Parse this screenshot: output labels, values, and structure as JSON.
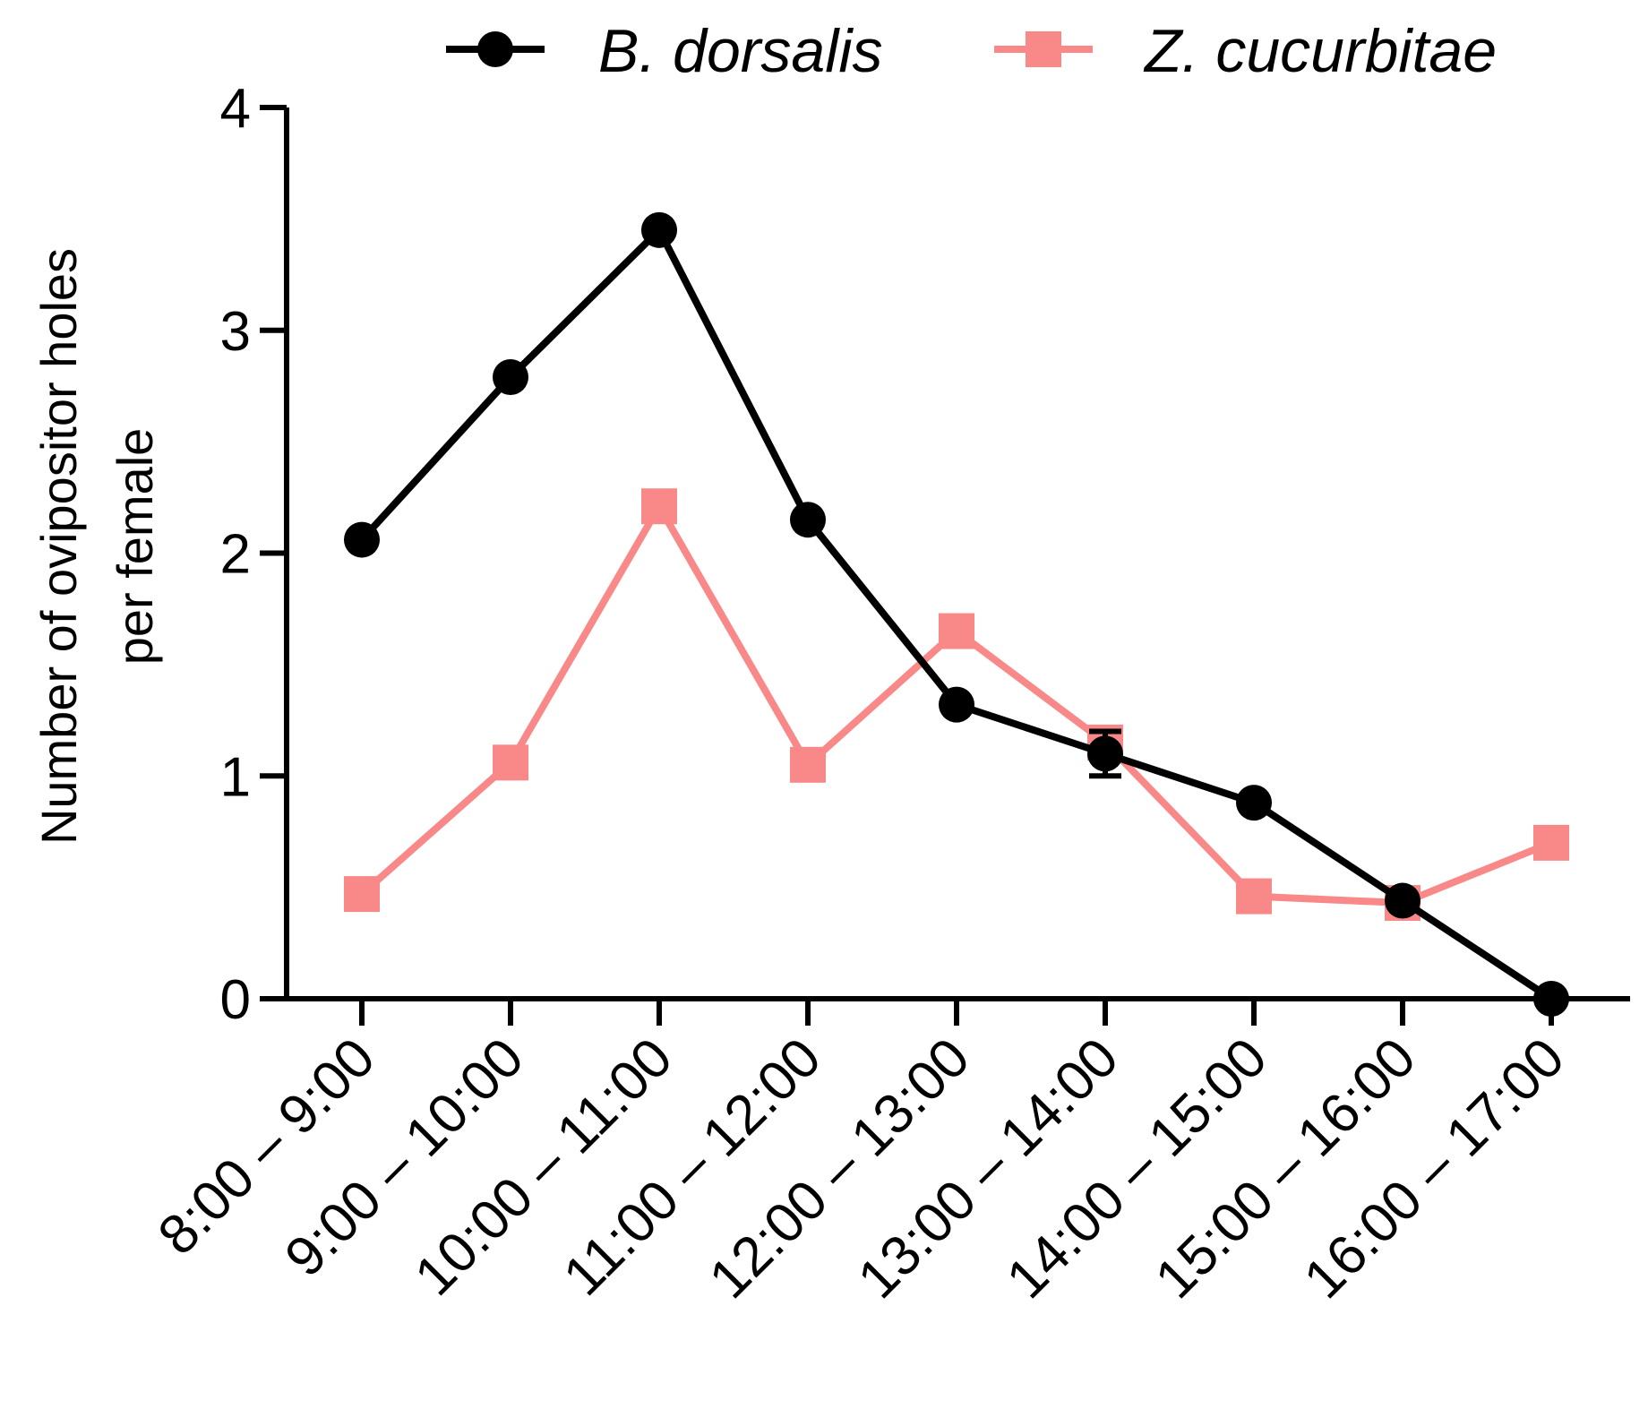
{
  "chart_data": {
    "type": "line",
    "title": "",
    "xlabel": "",
    "ylabel_lines": [
      "Number of ovipositor holes",
      "per female"
    ],
    "ylim": [
      0,
      4
    ],
    "yticks": [
      0,
      1,
      2,
      3,
      4
    ],
    "categories": [
      "8:00 – 9:00",
      "9:00 – 10:00",
      "10:00 – 11:00",
      "11:00 – 12:00",
      "12:00 – 13:00",
      "13:00 – 14:00",
      "14:00 – 15:00",
      "15:00 – 16:00",
      "16:00 – 17:00"
    ],
    "legend_position": "top-right",
    "series": [
      {
        "name": "B. dorsalis",
        "marker": "circle",
        "color": "#000000",
        "values": [
          2.06,
          2.79,
          3.45,
          2.15,
          1.32,
          1.1,
          0.88,
          0.44,
          0.0
        ],
        "error": [
          0,
          0,
          0,
          0,
          0,
          0.1,
          0,
          0,
          0
        ]
      },
      {
        "name": "Z. cucurbitae",
        "marker": "square",
        "color": "#f98989",
        "values": [
          0.47,
          1.06,
          2.21,
          1.05,
          1.65,
          1.15,
          0.46,
          0.43,
          0.7
        ],
        "error": [
          0,
          0,
          0,
          0,
          0,
          0,
          0,
          0,
          0.05
        ]
      }
    ]
  }
}
